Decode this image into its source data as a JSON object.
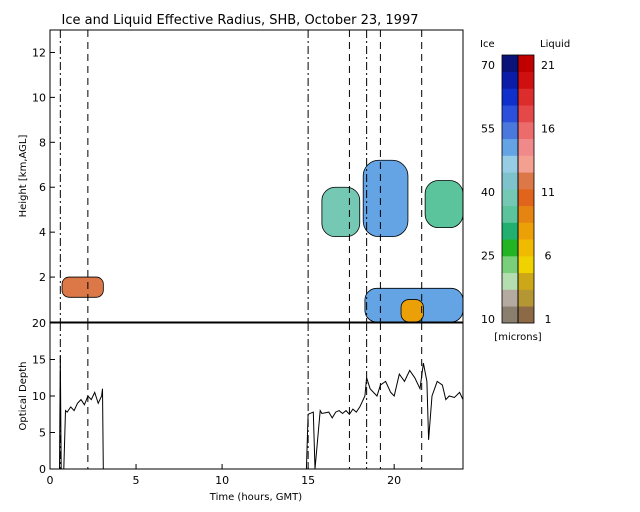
{
  "title": "Ice and Liquid Effective Radius, SHB, October 23, 1997",
  "chart_data": [
    {
      "type": "heatmap",
      "ylabel": "Height [km,AGL]",
      "xlim": [
        0,
        24
      ],
      "ylim": [
        0,
        13
      ],
      "yticks": [
        2,
        4,
        6,
        8,
        10,
        12
      ],
      "vlines_dashdot": [
        0.6,
        15.0,
        18.4
      ],
      "vlines_dashed": [
        2.2,
        17.4,
        19.2,
        21.6
      ],
      "regions": [
        {
          "phase": "liquid",
          "x": [
            0.7,
            3.1
          ],
          "y": [
            1.1,
            2.0
          ],
          "radius": 11
        },
        {
          "phase": "ice",
          "x": [
            15.8,
            18.0
          ],
          "y": [
            3.8,
            6.0
          ],
          "radius": 38
        },
        {
          "phase": "ice",
          "x": [
            18.2,
            20.8
          ],
          "y": [
            3.8,
            7.2
          ],
          "radius": 48
        },
        {
          "phase": "ice",
          "x": [
            21.8,
            24.0
          ],
          "y": [
            4.2,
            6.3
          ],
          "radius": 36
        },
        {
          "phase": "ice",
          "x": [
            18.3,
            24.0
          ],
          "y": [
            0.0,
            1.5
          ],
          "radius": 50
        },
        {
          "phase": "liquid",
          "x": [
            20.4,
            21.7
          ],
          "y": [
            0.0,
            1.0
          ],
          "radius": 8
        }
      ]
    },
    {
      "type": "line",
      "xlabel": "Time (hours, GMT)",
      "ylabel": "Optical Depth",
      "xlim": [
        0,
        24
      ],
      "ylim": [
        0,
        20
      ],
      "xticks": [
        0,
        5,
        10,
        15,
        20
      ],
      "yticks": [
        0,
        5,
        10,
        15,
        20
      ],
      "x": [
        0.0,
        0.55,
        0.6,
        0.65,
        0.8,
        0.9,
        1.0,
        1.2,
        1.4,
        1.6,
        1.8,
        2.0,
        2.2,
        2.4,
        2.6,
        2.8,
        3.0,
        3.05,
        3.1,
        14.9,
        15.0,
        15.3,
        15.4,
        15.7,
        15.8,
        16.2,
        16.4,
        16.6,
        16.8,
        17.0,
        17.2,
        17.4,
        17.6,
        17.8,
        18.0,
        18.3,
        18.4,
        18.6,
        18.8,
        19.0,
        19.2,
        19.5,
        19.8,
        20.0,
        20.3,
        20.6,
        20.9,
        21.2,
        21.5,
        21.7,
        21.9,
        22.0,
        22.2,
        22.5,
        22.8,
        23.0,
        23.2,
        23.5,
        23.8,
        24.0
      ],
      "values": [
        0,
        0,
        15.5,
        0,
        0,
        8.0,
        7.8,
        8.5,
        8.0,
        9.0,
        9.5,
        8.8,
        10.0,
        9.5,
        10.5,
        9.0,
        10.0,
        11.0,
        0,
        0,
        7.5,
        7.8,
        0,
        8.0,
        7.6,
        7.8,
        7.0,
        7.8,
        8.0,
        7.6,
        8.0,
        7.5,
        8.2,
        7.8,
        8.5,
        10.0,
        12.5,
        11.0,
        10.5,
        10.0,
        11.5,
        12.0,
        10.5,
        10.0,
        13.0,
        12.0,
        13.5,
        12.5,
        11.0,
        14.5,
        12.0,
        4.0,
        10.0,
        12.0,
        11.5,
        9.5,
        10.0,
        9.8,
        10.5,
        9.5
      ]
    },
    {
      "type": "colorbar",
      "labels": [
        "Ice",
        "Liquid"
      ],
      "ice_ticks": [
        10,
        25,
        40,
        55,
        70
      ],
      "liquid_ticks": [
        1,
        6,
        11,
        16,
        21
      ],
      "unit": "[microns]",
      "ice_colors": [
        "#8a7e6e",
        "#b4aaa0",
        "#b4ddb0",
        "#7ad07a",
        "#23b423",
        "#22b070",
        "#5cc49c",
        "#74c8b4",
        "#7ec2cc",
        "#96cce4",
        "#64a4e4",
        "#4a78dc",
        "#2a50dc",
        "#1030cc",
        "#0a1ca8",
        "#0a1478"
      ],
      "liquid_colors": [
        "#8c6a46",
        "#b49632",
        "#cca818",
        "#f0d200",
        "#f0ba00",
        "#eca008",
        "#e68412",
        "#e0641c",
        "#dc7848",
        "#f4a090",
        "#f08a8a",
        "#ec6c6c",
        "#e44848",
        "#dc2c2c",
        "#d01010",
        "#c00000"
      ]
    }
  ]
}
